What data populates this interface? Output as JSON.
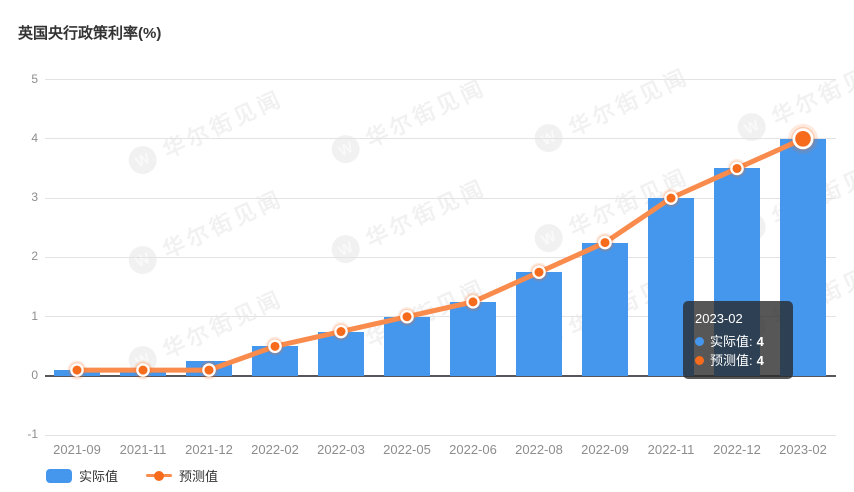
{
  "title": "英国央行政策利率(%)",
  "chart_data": {
    "type": "bar",
    "categories": [
      "2021-09",
      "2021-11",
      "2021-12",
      "2022-02",
      "2022-03",
      "2022-05",
      "2022-06",
      "2022-08",
      "2022-09",
      "2022-11",
      "2022-12",
      "2023-02"
    ],
    "series": [
      {
        "name": "实际值",
        "type": "bar",
        "color": "#4497EC",
        "values": [
          0.1,
          0.1,
          0.25,
          0.5,
          0.75,
          1,
          1.25,
          1.75,
          2.25,
          3,
          3.5,
          4
        ]
      },
      {
        "name": "预测值",
        "type": "line",
        "color": "#F98B4D",
        "point_color": "#F76B1C",
        "values": [
          0.1,
          0.1,
          0.1,
          0.5,
          0.75,
          1,
          1.25,
          1.75,
          2.25,
          3,
          3.5,
          4
        ]
      }
    ],
    "title": "英国央行政策利率(%)",
    "xlabel": "",
    "ylabel": "",
    "ylim": [
      -1,
      5
    ],
    "yticks": [
      -1,
      0,
      1,
      2,
      3,
      4,
      5
    ],
    "grid": true,
    "legend_position": "bottom-left",
    "highlighted_category": "2023-02"
  },
  "tooltip": {
    "title": "2023-02",
    "rows": [
      {
        "label": "实际值",
        "value": "4",
        "color": "#4497EC"
      },
      {
        "label": "预测值",
        "value": "4",
        "color": "#F76B1C"
      }
    ]
  },
  "legend": [
    {
      "label": "实际值",
      "marker": "bar",
      "color": "#4497EC"
    },
    {
      "label": "预测值",
      "marker": "line-dot",
      "color": "#F98B4D",
      "dot_color": "#F76B1C"
    }
  ],
  "watermark": {
    "logo": "W",
    "text": "华尔街见闻"
  },
  "colors": {
    "bar": "#4497EC",
    "line": "#F98B4D",
    "point": "#F76B1C",
    "grid": "#e3e3e3",
    "zero_axis": "#55575c",
    "axis_label": "#8d8d8d",
    "title_text": "#333333",
    "tooltip_bg": "rgba(40,40,40,0.78)"
  },
  "highlight_index": 11
}
